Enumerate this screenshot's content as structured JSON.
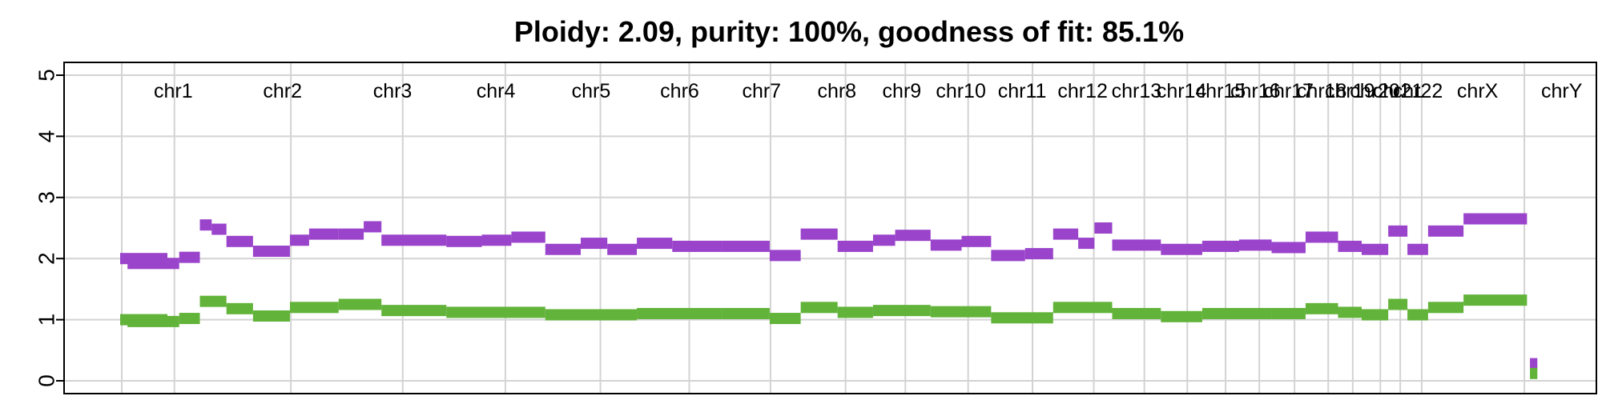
{
  "title": "Ploidy: 2.09, purity: 100%, goodness of fit: 85.1%",
  "colors": {
    "total": "#9a43cb",
    "minor": "#62b33a",
    "grid": "#d3d3d3"
  },
  "chart_data": {
    "type": "scatter",
    "title": "Ploidy: 2.09, purity: 100%, goodness of fit: 85.1%",
    "xlabel": "",
    "ylabel": "",
    "ylim": [
      0,
      5
    ],
    "yticks": [
      "0",
      "1",
      "2",
      "3",
      "4",
      "5"
    ],
    "grid": true,
    "legend": "none",
    "xlim": [
      0,
      100
    ],
    "chromosomes": [
      {
        "name": "chr1",
        "start": 0,
        "end": 7.2,
        "total": [
          [
            0,
            3.2,
            2.0
          ],
          [
            0.5,
            4.0,
            1.92
          ],
          [
            4.0,
            5.4,
            2.02
          ],
          [
            5.4,
            6.2,
            2.55
          ],
          [
            6.2,
            7.2,
            2.48
          ]
        ],
        "minor": [
          [
            0,
            3.2,
            1.0
          ],
          [
            0.5,
            4.0,
            0.97
          ],
          [
            4.0,
            5.4,
            1.02
          ],
          [
            5.4,
            7.2,
            1.3
          ]
        ]
      },
      {
        "name": "chr2",
        "start": 7.2,
        "end": 14.8,
        "total": [
          [
            7.2,
            9.0,
            2.28
          ],
          [
            9.0,
            11.5,
            2.12
          ],
          [
            11.5,
            12.8,
            2.3
          ],
          [
            12.8,
            14.8,
            2.4
          ]
        ],
        "minor": [
          [
            7.2,
            9.0,
            1.18
          ],
          [
            9.0,
            11.5,
            1.06
          ],
          [
            11.5,
            14.8,
            1.2
          ]
        ]
      },
      {
        "name": "chr3",
        "start": 14.8,
        "end": 22.1,
        "total": [
          [
            14.8,
            16.5,
            2.4
          ],
          [
            16.5,
            17.7,
            2.52
          ],
          [
            17.7,
            22.1,
            2.3
          ]
        ],
        "minor": [
          [
            14.8,
            17.7,
            1.25
          ],
          [
            17.7,
            22.1,
            1.15
          ]
        ]
      },
      {
        "name": "chr4",
        "start": 22.1,
        "end": 28.8,
        "total": [
          [
            22.1,
            24.5,
            2.28
          ],
          [
            24.5,
            26.5,
            2.3
          ],
          [
            26.5,
            28.8,
            2.35
          ]
        ],
        "minor": [
          [
            22.1,
            28.8,
            1.12
          ]
        ]
      },
      {
        "name": "chr5",
        "start": 28.8,
        "end": 35.0,
        "total": [
          [
            28.8,
            31.2,
            2.15
          ],
          [
            31.2,
            33.0,
            2.25
          ],
          [
            33.0,
            35.0,
            2.15
          ]
        ],
        "minor": [
          [
            28.8,
            35.0,
            1.08
          ]
        ]
      },
      {
        "name": "chr6",
        "start": 35.0,
        "end": 40.8,
        "total": [
          [
            35.0,
            37.4,
            2.25
          ],
          [
            37.4,
            40.8,
            2.2
          ]
        ],
        "minor": [
          [
            35.0,
            40.8,
            1.1
          ]
        ]
      },
      {
        "name": "chr7",
        "start": 40.8,
        "end": 46.1,
        "total": [
          [
            40.8,
            44.0,
            2.2
          ],
          [
            44.0,
            46.1,
            2.05
          ]
        ],
        "minor": [
          [
            40.8,
            44.0,
            1.1
          ],
          [
            44.0,
            46.1,
            1.02
          ]
        ]
      },
      {
        "name": "chr8",
        "start": 46.1,
        "end": 51.0,
        "total": [
          [
            46.1,
            48.6,
            2.4
          ],
          [
            48.6,
            51.0,
            2.2
          ]
        ],
        "minor": [
          [
            46.1,
            48.6,
            1.2
          ],
          [
            48.6,
            51.0,
            1.12
          ]
        ]
      },
      {
        "name": "chr9",
        "start": 51.0,
        "end": 54.9,
        "total": [
          [
            51.0,
            52.5,
            2.3
          ],
          [
            52.5,
            54.9,
            2.38
          ]
        ],
        "minor": [
          [
            51.0,
            54.9,
            1.15
          ]
        ]
      },
      {
        "name": "chr10",
        "start": 54.9,
        "end": 59.0,
        "total": [
          [
            54.9,
            57.0,
            2.22
          ],
          [
            57.0,
            59.0,
            2.28
          ]
        ],
        "minor": [
          [
            54.9,
            59.0,
            1.13
          ]
        ]
      },
      {
        "name": "chr11",
        "start": 59.0,
        "end": 63.2,
        "total": [
          [
            59.0,
            61.3,
            2.05
          ],
          [
            61.3,
            63.2,
            2.08
          ]
        ],
        "minor": [
          [
            59.0,
            63.2,
            1.03
          ]
        ]
      },
      {
        "name": "chr12",
        "start": 63.2,
        "end": 67.2,
        "total": [
          [
            63.2,
            64.9,
            2.4
          ],
          [
            64.9,
            66.0,
            2.25
          ],
          [
            66.0,
            67.2,
            2.5
          ]
        ],
        "minor": [
          [
            63.2,
            67.2,
            1.2
          ]
        ]
      },
      {
        "name": "chr13",
        "start": 67.2,
        "end": 70.5,
        "total": [
          [
            67.2,
            70.5,
            2.22
          ]
        ],
        "minor": [
          [
            67.2,
            70.5,
            1.1
          ]
        ]
      },
      {
        "name": "chr14",
        "start": 70.5,
        "end": 73.3,
        "total": [
          [
            70.5,
            73.3,
            2.15
          ]
        ],
        "minor": [
          [
            70.5,
            73.3,
            1.05
          ]
        ]
      },
      {
        "name": "chr15",
        "start": 73.3,
        "end": 75.8,
        "total": [
          [
            73.3,
            75.8,
            2.2
          ]
        ],
        "minor": [
          [
            73.3,
            75.8,
            1.1
          ]
        ]
      },
      {
        "name": "chr16",
        "start": 75.8,
        "end": 78.0,
        "total": [
          [
            75.8,
            78.0,
            2.22
          ]
        ],
        "minor": [
          [
            75.8,
            78.0,
            1.1
          ]
        ]
      },
      {
        "name": "chr17",
        "start": 78.0,
        "end": 80.3,
        "total": [
          [
            78.0,
            80.3,
            2.18
          ]
        ],
        "minor": [
          [
            78.0,
            80.3,
            1.1
          ]
        ]
      },
      {
        "name": "chr18",
        "start": 80.3,
        "end": 82.5,
        "total": [
          [
            80.3,
            82.5,
            2.35
          ]
        ],
        "minor": [
          [
            80.3,
            82.5,
            1.18
          ]
        ]
      },
      {
        "name": "chr19",
        "start": 82.5,
        "end": 84.1,
        "total": [
          [
            82.5,
            84.1,
            2.2
          ]
        ],
        "minor": [
          [
            82.5,
            84.1,
            1.12
          ]
        ]
      },
      {
        "name": "chr20",
        "start": 84.1,
        "end": 85.9,
        "total": [
          [
            84.1,
            85.9,
            2.15
          ]
        ],
        "minor": [
          [
            84.1,
            85.9,
            1.08
          ]
        ]
      },
      {
        "name": "chr21",
        "start": 85.9,
        "end": 87.2,
        "total": [
          [
            85.9,
            87.2,
            2.45
          ]
        ],
        "minor": [
          [
            85.9,
            87.2,
            1.25
          ]
        ]
      },
      {
        "name": "chr22",
        "start": 87.2,
        "end": 88.6,
        "total": [
          [
            87.2,
            88.6,
            2.15
          ]
        ],
        "minor": [
          [
            87.2,
            88.6,
            1.08
          ]
        ]
      },
      {
        "name": "chrX",
        "start": 88.6,
        "end": 95.3,
        "total": [
          [
            88.6,
            91.0,
            2.45
          ],
          [
            91.0,
            95.3,
            2.65
          ]
        ],
        "minor": [
          [
            88.6,
            91.0,
            1.2
          ],
          [
            91.0,
            95.3,
            1.32
          ]
        ]
      },
      {
        "name": "chrY",
        "start": 95.3,
        "end": 100.0,
        "total": [
          [
            95.5,
            96.0,
            0.28
          ]
        ],
        "minor": [
          [
            95.5,
            96.0,
            0.12
          ]
        ]
      }
    ]
  }
}
